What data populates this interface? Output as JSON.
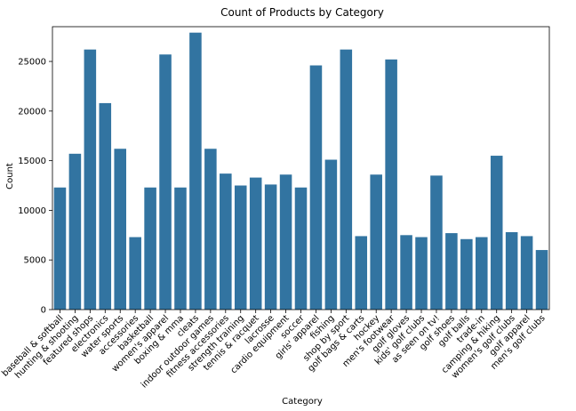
{
  "chart_data": {
    "type": "bar",
    "title": "Count of Products by Category",
    "xlabel": "Category",
    "ylabel": "Count",
    "ylim": [
      0,
      28500
    ],
    "yticks": [
      0,
      5000,
      10000,
      15000,
      20000,
      25000
    ],
    "grid": false,
    "bar_color": "#3274a1",
    "categories": [
      "baseball & softball",
      "hunting & shooting",
      "featured shops",
      "electronics",
      "water sports",
      "accessories",
      "basketball",
      "women's apparel",
      "boxing & mma",
      "cleats",
      "indoor outdoor games",
      "fitness accessories",
      "strength training",
      "tennis & racquet",
      "lacrosse",
      "cardio equipment",
      "soccer",
      "girls' apparel",
      "fishing",
      "shop by sport",
      "golf bags & carts",
      "hockey",
      "men's footwear",
      "golf gloves",
      "kids' golf clubs",
      "as seen on tv!",
      "golf shoes",
      "golf balls",
      "trade-in",
      "camping & hiking",
      "women's golf clubs",
      "golf apparel",
      "men's golf clubs"
    ],
    "values": [
      12300,
      15700,
      26200,
      20800,
      16200,
      7300,
      12300,
      25700,
      12300,
      27900,
      16200,
      13700,
      12500,
      13300,
      12600,
      13600,
      12300,
      24600,
      15100,
      26200,
      7400,
      13600,
      25200,
      7500,
      7300,
      13500,
      7700,
      7100,
      7300,
      15500,
      7800,
      7400,
      6000
    ]
  }
}
